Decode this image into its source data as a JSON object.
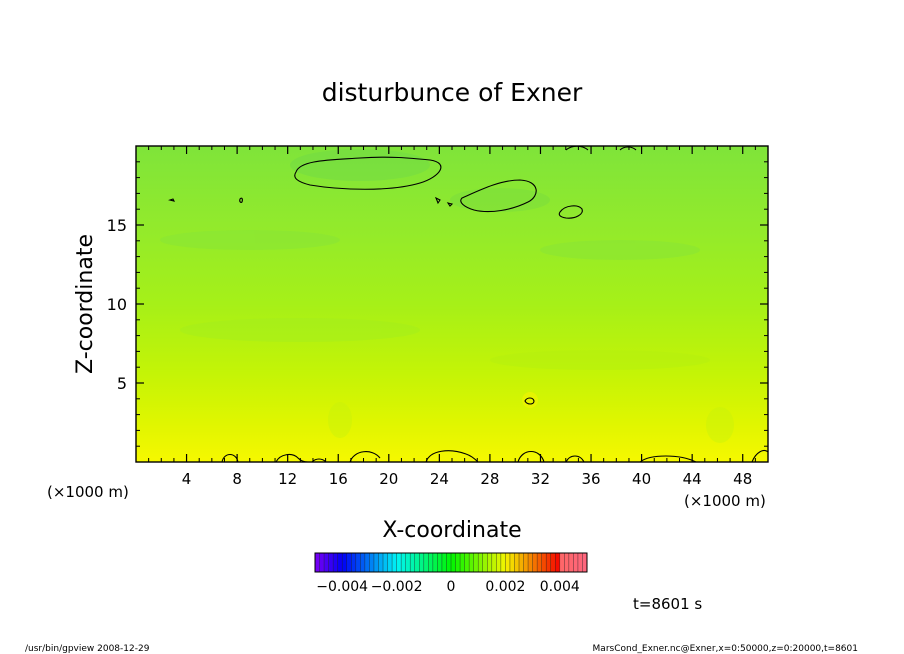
{
  "chart_data": {
    "type": "heatmap",
    "title": "disturbunce of Exner",
    "xlabel": "X-coordinate",
    "ylabel": "Z-coordinate",
    "xunit_left": "(×1000 m)",
    "xunit_right": "(×1000 m)",
    "xlim": [
      0,
      50
    ],
    "ylim": [
      0,
      20
    ],
    "xticks": [
      4,
      8,
      12,
      16,
      20,
      24,
      28,
      32,
      36,
      40,
      44,
      48
    ],
    "xtick_labels": [
      "4",
      "8",
      "12",
      "16",
      "20",
      "24",
      "28",
      "32",
      "36",
      "40",
      "44",
      "48"
    ],
    "yticks": [
      5,
      10,
      15
    ],
    "ytick_labels": [
      "5",
      "10",
      "15"
    ],
    "colorbar": {
      "range": [
        -0.005,
        0.005
      ],
      "tick_values": [
        -0.004,
        -0.002,
        0,
        0.002,
        0.004
      ],
      "tick_labels": [
        "−0.004",
        "−0.002",
        "0",
        "0.002",
        "0.004"
      ]
    },
    "time_label": "t=8601 s",
    "footer_left": "/usr/bin/gpview   2008-12-29",
    "footer_right": "MarsCond_Exner.nc@Exner,x=0:50000,z=0:20000,t=8601",
    "grid": false,
    "legend": "colorbar-bottom"
  }
}
